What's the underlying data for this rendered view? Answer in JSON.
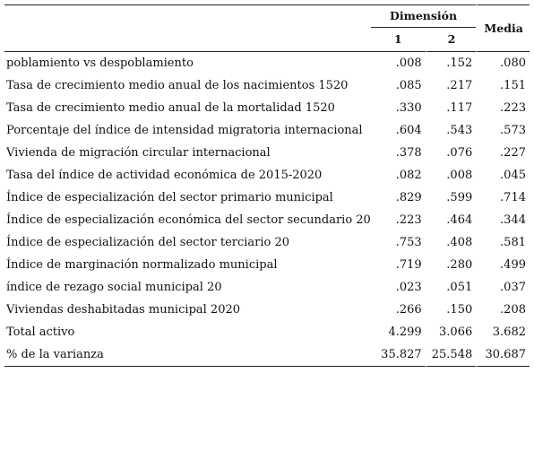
{
  "table": {
    "header": {
      "group_label": "Dimensión",
      "dim1": "1",
      "dim2": "2",
      "mean": "Media"
    },
    "rows": [
      {
        "label": "poblamiento vs despoblamiento",
        "d1": ".008",
        "d2": ".152",
        "mean": ".080"
      },
      {
        "label": "Tasa de crecimiento medio anual de los nacimientos 1520",
        "d1": ".085",
        "d2": ".217",
        "mean": ".151"
      },
      {
        "label": "Tasa de crecimiento medio anual de la mortalidad 1520",
        "d1": ".330",
        "d2": ".117",
        "mean": ".223"
      },
      {
        "label": "Porcentaje del índice de intensidad migratoria internacional",
        "d1": ".604",
        "d2": ".543",
        "mean": ".573"
      },
      {
        "label": "Vivienda de migración circular internacional",
        "d1": ".378",
        "d2": ".076",
        "mean": ".227"
      },
      {
        "label": "Tasa del índice de actividad económica de 2015-2020",
        "d1": ".082",
        "d2": ".008",
        "mean": ".045"
      },
      {
        "label": "Índice de especialización del sector primario municipal",
        "d1": ".829",
        "d2": ".599",
        "mean": ".714"
      },
      {
        "label": "Índice de especialización económica del sector secundario 20",
        "d1": ".223",
        "d2": ".464",
        "mean": ".344"
      },
      {
        "label": "Índice de especialización del sector terciario 20",
        "d1": ".753",
        "d2": ".408",
        "mean": ".581"
      },
      {
        "label": "Índice de marginación normalizado municipal",
        "d1": ".719",
        "d2": ".280",
        "mean": ".499"
      },
      {
        "label": "índice de rezago social municipal 20",
        "d1": ".023",
        "d2": ".051",
        "mean": ".037"
      },
      {
        "label": "Viviendas deshabitadas municipal 2020",
        "d1": ".266",
        "d2": ".150",
        "mean": ".208"
      },
      {
        "label": "Total activo",
        "d1": "4.299",
        "d2": "3.066",
        "mean": "3.682"
      },
      {
        "label": "% de la varianza",
        "d1": "35.827",
        "d2": "25.548",
        "mean": "30.687"
      }
    ]
  }
}
